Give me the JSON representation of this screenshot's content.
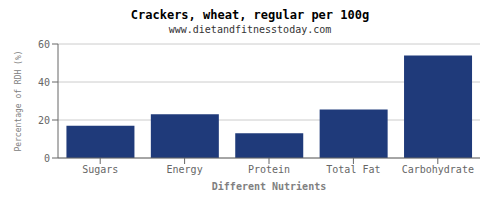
{
  "chart_data": {
    "type": "bar",
    "title": "Crackers, wheat, regular per 100g",
    "subtitle": "www.dietandfitnesstoday.com",
    "xlabel": "Different Nutrients",
    "ylabel": "Percentage of RDH (%)",
    "categories": [
      "Sugars",
      "Energy",
      "Protein",
      "Total Fat",
      "Carbohydrate"
    ],
    "values": [
      17,
      23,
      13,
      25.5,
      54
    ],
    "color": "#1f3a7a",
    "ylim": [
      0,
      60
    ],
    "yticks": [
      0,
      20,
      40,
      60
    ],
    "grid": true
  }
}
